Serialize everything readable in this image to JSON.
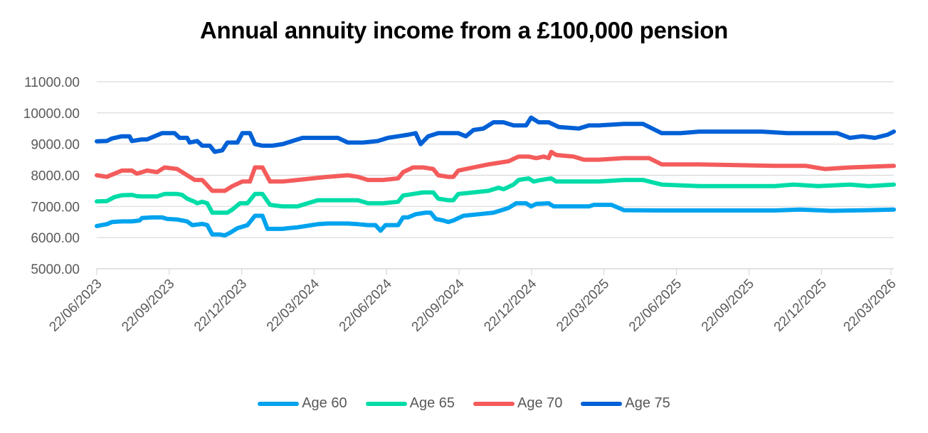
{
  "chart_data": {
    "type": "line",
    "title": "Annual annuity income from a £100,000 pension",
    "xlabel": "",
    "ylabel": "",
    "ylim": [
      5000,
      11000
    ],
    "yticks": [
      "11000.00",
      "10000.00",
      "9000.00",
      "8000.00",
      "7000.00",
      "6000.00",
      "5000.00"
    ],
    "ytick_values": [
      11000,
      10000,
      9000,
      8000,
      7000,
      6000,
      5000
    ],
    "xticks": [
      "22/06/2023",
      "22/09/2023",
      "22/12/2023",
      "22/03/2024",
      "22/06/2024",
      "22/09/2024",
      "22/12/2024",
      "22/03/2025",
      "22/06/2025",
      "22/09/2025",
      "22/12/2025",
      "22/03/2026"
    ],
    "x_range": [
      "22/06/2023",
      "22/03/2026"
    ],
    "grid": "horizontal",
    "legend_position": "bottom",
    "x_note": "x values are fraction of the time axis from 22/06/2023 (0) to 22/03/2026 (1)",
    "series": [
      {
        "name": "Age 60",
        "color": "#00A3EE",
        "points": [
          [
            0,
            6370
          ],
          [
            0.01,
            6400
          ],
          [
            0.02,
            6430
          ],
          [
            0.03,
            6500
          ],
          [
            0.05,
            6520
          ],
          [
            0.07,
            6520
          ],
          [
            0.085,
            6550
          ],
          [
            0.09,
            6630
          ],
          [
            0.11,
            6650
          ],
          [
            0.13,
            6650
          ],
          [
            0.14,
            6600
          ],
          [
            0.16,
            6580
          ],
          [
            0.17,
            6550
          ],
          [
            0.18,
            6520
          ],
          [
            0.19,
            6400
          ],
          [
            0.2,
            6420
          ],
          [
            0.21,
            6440
          ],
          [
            0.22,
            6400
          ],
          [
            0.23,
            6100
          ],
          [
            0.245,
            6100
          ],
          [
            0.255,
            6070
          ],
          [
            0.265,
            6150
          ],
          [
            0.28,
            6300
          ],
          [
            0.3,
            6400
          ],
          [
            0.315,
            6700
          ],
          [
            0.33,
            6700
          ],
          [
            0.34,
            6280
          ],
          [
            0.37,
            6280
          ],
          [
            0.38,
            6300
          ],
          [
            0.4,
            6330
          ],
          [
            0.42,
            6380
          ],
          [
            0.44,
            6430
          ],
          [
            0.46,
            6450
          ],
          [
            0.48,
            6450
          ],
          [
            0.5,
            6450
          ],
          [
            0.52,
            6430
          ],
          [
            0.54,
            6400
          ],
          [
            0.555,
            6400
          ],
          [
            0.565,
            6220
          ],
          [
            0.575,
            6400
          ],
          [
            0.6,
            6400
          ],
          [
            0.61,
            6650
          ],
          [
            0.62,
            6650
          ],
          [
            0.635,
            6750
          ],
          [
            0.655,
            6800
          ],
          [
            0.665,
            6800
          ],
          [
            0.675,
            6600
          ],
          [
            0.69,
            6550
          ],
          [
            0.7,
            6500
          ],
          [
            0.71,
            6550
          ],
          [
            0.73,
            6700
          ],
          [
            0.76,
            6750
          ],
          [
            0.79,
            6800
          ],
          [
            0.81,
            6900
          ],
          [
            0.82,
            6950
          ],
          [
            0.835,
            7100
          ],
          [
            0.855,
            7100
          ],
          [
            0.865,
            7000
          ],
          [
            0.875,
            7080
          ],
          [
            0.9,
            7100
          ],
          [
            0.91,
            7000
          ],
          [
            0.93,
            7000
          ],
          [
            0.96,
            7000
          ],
          [
            0.98,
            7000
          ],
          [
            0.99,
            7050
          ],
          [
            1.0,
            7050
          ]
        ],
        "points_tail": [
          [
            0,
            7050
          ],
          [
            0.02,
            7050
          ],
          [
            0.04,
            6880
          ],
          [
            0.1,
            6870
          ],
          [
            0.2,
            6870
          ],
          [
            0.28,
            6870
          ],
          [
            0.32,
            6900
          ],
          [
            0.37,
            6860
          ],
          [
            0.43,
            6880
          ],
          [
            0.47,
            6900
          ]
        ]
      },
      {
        "name": "Age 65",
        "color": "#00DCA8",
        "points": [
          [
            0,
            7160
          ],
          [
            0.02,
            7170
          ],
          [
            0.035,
            7300
          ],
          [
            0.05,
            7360
          ],
          [
            0.07,
            7370
          ],
          [
            0.08,
            7330
          ],
          [
            0.09,
            7320
          ],
          [
            0.12,
            7320
          ],
          [
            0.135,
            7400
          ],
          [
            0.16,
            7400
          ],
          [
            0.17,
            7370
          ],
          [
            0.18,
            7250
          ],
          [
            0.195,
            7150
          ],
          [
            0.2,
            7100
          ],
          [
            0.21,
            7150
          ],
          [
            0.22,
            7100
          ],
          [
            0.23,
            6800
          ],
          [
            0.26,
            6800
          ],
          [
            0.27,
            6900
          ],
          [
            0.285,
            7100
          ],
          [
            0.3,
            7100
          ],
          [
            0.315,
            7400
          ],
          [
            0.33,
            7400
          ],
          [
            0.345,
            7050
          ],
          [
            0.37,
            7000
          ],
          [
            0.4,
            7000
          ],
          [
            0.42,
            7100
          ],
          [
            0.44,
            7200
          ],
          [
            0.46,
            7200
          ],
          [
            0.5,
            7200
          ],
          [
            0.52,
            7200
          ],
          [
            0.54,
            7100
          ],
          [
            0.57,
            7100
          ],
          [
            0.6,
            7150
          ],
          [
            0.61,
            7350
          ],
          [
            0.63,
            7400
          ],
          [
            0.65,
            7450
          ],
          [
            0.67,
            7450
          ],
          [
            0.68,
            7250
          ],
          [
            0.7,
            7200
          ],
          [
            0.71,
            7200
          ],
          [
            0.72,
            7400
          ],
          [
            0.75,
            7450
          ],
          [
            0.78,
            7500
          ],
          [
            0.8,
            7600
          ],
          [
            0.81,
            7550
          ],
          [
            0.83,
            7700
          ],
          [
            0.84,
            7850
          ],
          [
            0.86,
            7900
          ],
          [
            0.87,
            7800
          ],
          [
            0.885,
            7850
          ],
          [
            0.905,
            7900
          ],
          [
            0.915,
            7800
          ],
          [
            0.95,
            7800
          ],
          [
            1.0,
            7800
          ]
        ],
        "points_tail": [
          [
            0,
            7800
          ],
          [
            0.04,
            7850
          ],
          [
            0.07,
            7850
          ],
          [
            0.1,
            7700
          ],
          [
            0.16,
            7650
          ],
          [
            0.28,
            7650
          ],
          [
            0.31,
            7700
          ],
          [
            0.35,
            7650
          ],
          [
            0.4,
            7700
          ],
          [
            0.43,
            7650
          ],
          [
            0.47,
            7700
          ]
        ]
      },
      {
        "name": "Age 70",
        "color": "#F45B5B",
        "points": [
          [
            0,
            8000
          ],
          [
            0.02,
            7950
          ],
          [
            0.035,
            8050
          ],
          [
            0.05,
            8150
          ],
          [
            0.07,
            8150
          ],
          [
            0.08,
            8050
          ],
          [
            0.09,
            8100
          ],
          [
            0.1,
            8150
          ],
          [
            0.12,
            8100
          ],
          [
            0.135,
            8250
          ],
          [
            0.16,
            8200
          ],
          [
            0.17,
            8100
          ],
          [
            0.18,
            8000
          ],
          [
            0.195,
            7850
          ],
          [
            0.21,
            7850
          ],
          [
            0.23,
            7500
          ],
          [
            0.255,
            7500
          ],
          [
            0.27,
            7650
          ],
          [
            0.29,
            7800
          ],
          [
            0.305,
            7800
          ],
          [
            0.315,
            8250
          ],
          [
            0.33,
            8250
          ],
          [
            0.345,
            7800
          ],
          [
            0.37,
            7800
          ],
          [
            0.4,
            7850
          ],
          [
            0.43,
            7900
          ],
          [
            0.46,
            7950
          ],
          [
            0.5,
            8000
          ],
          [
            0.52,
            7950
          ],
          [
            0.54,
            7850
          ],
          [
            0.57,
            7850
          ],
          [
            0.6,
            7900
          ],
          [
            0.61,
            8100
          ],
          [
            0.63,
            8250
          ],
          [
            0.65,
            8250
          ],
          [
            0.67,
            8200
          ],
          [
            0.68,
            8000
          ],
          [
            0.7,
            7950
          ],
          [
            0.71,
            7950
          ],
          [
            0.72,
            8150
          ],
          [
            0.75,
            8250
          ],
          [
            0.78,
            8350
          ],
          [
            0.8,
            8400
          ],
          [
            0.82,
            8450
          ],
          [
            0.84,
            8600
          ],
          [
            0.86,
            8600
          ],
          [
            0.875,
            8550
          ],
          [
            0.89,
            8600
          ],
          [
            0.9,
            8550
          ],
          [
            0.905,
            8750
          ],
          [
            0.915,
            8650
          ],
          [
            0.95,
            8600
          ],
          [
            0.97,
            8500
          ],
          [
            1.0,
            8500
          ]
        ],
        "points_tail": [
          [
            0,
            8500
          ],
          [
            0.04,
            8550
          ],
          [
            0.08,
            8550
          ],
          [
            0.1,
            8350
          ],
          [
            0.16,
            8350
          ],
          [
            0.28,
            8300
          ],
          [
            0.33,
            8300
          ],
          [
            0.36,
            8200
          ],
          [
            0.4,
            8250
          ],
          [
            0.47,
            8300
          ]
        ]
      },
      {
        "name": "Age 75",
        "color": "#0060D6",
        "points": [
          [
            0,
            9090
          ],
          [
            0.02,
            9100
          ],
          [
            0.03,
            9180
          ],
          [
            0.05,
            9250
          ],
          [
            0.065,
            9250
          ],
          [
            0.07,
            9100
          ],
          [
            0.09,
            9150
          ],
          [
            0.1,
            9150
          ],
          [
            0.115,
            9250
          ],
          [
            0.13,
            9350
          ],
          [
            0.155,
            9350
          ],
          [
            0.165,
            9200
          ],
          [
            0.18,
            9200
          ],
          [
            0.185,
            9050
          ],
          [
            0.2,
            9100
          ],
          [
            0.21,
            8950
          ],
          [
            0.225,
            8950
          ],
          [
            0.235,
            8750
          ],
          [
            0.25,
            8800
          ],
          [
            0.26,
            9050
          ],
          [
            0.28,
            9050
          ],
          [
            0.29,
            9350
          ],
          [
            0.305,
            9350
          ],
          [
            0.315,
            9000
          ],
          [
            0.33,
            8950
          ],
          [
            0.35,
            8950
          ],
          [
            0.37,
            9000
          ],
          [
            0.39,
            9100
          ],
          [
            0.41,
            9200
          ],
          [
            0.46,
            9200
          ],
          [
            0.48,
            9200
          ],
          [
            0.5,
            9050
          ],
          [
            0.53,
            9050
          ],
          [
            0.56,
            9100
          ],
          [
            0.58,
            9200
          ],
          [
            0.6,
            9250
          ],
          [
            0.62,
            9300
          ],
          [
            0.635,
            9350
          ],
          [
            0.645,
            9000
          ],
          [
            0.66,
            9250
          ],
          [
            0.68,
            9350
          ],
          [
            0.72,
            9350
          ],
          [
            0.735,
            9250
          ],
          [
            0.75,
            9450
          ],
          [
            0.77,
            9500
          ],
          [
            0.79,
            9700
          ],
          [
            0.81,
            9700
          ],
          [
            0.83,
            9600
          ],
          [
            0.855,
            9600
          ],
          [
            0.865,
            9850
          ],
          [
            0.88,
            9700
          ],
          [
            0.9,
            9700
          ],
          [
            0.92,
            9550
          ],
          [
            0.96,
            9500
          ],
          [
            0.98,
            9600
          ],
          [
            1.0,
            9600
          ]
        ],
        "points_tail": [
          [
            0,
            9600
          ],
          [
            0.04,
            9650
          ],
          [
            0.07,
            9650
          ],
          [
            0.1,
            9350
          ],
          [
            0.13,
            9350
          ],
          [
            0.16,
            9400
          ],
          [
            0.26,
            9400
          ],
          [
            0.3,
            9350
          ],
          [
            0.38,
            9350
          ],
          [
            0.4,
            9200
          ],
          [
            0.42,
            9250
          ],
          [
            0.44,
            9200
          ],
          [
            0.46,
            9300
          ],
          [
            0.47,
            9400
          ]
        ]
      }
    ]
  },
  "legend": {
    "items": [
      {
        "label": "Age 60",
        "color": "#00A3EE"
      },
      {
        "label": "Age 65",
        "color": "#00DCA8"
      },
      {
        "label": "Age 70",
        "color": "#F45B5B"
      },
      {
        "label": "Age 75",
        "color": "#0060D6"
      }
    ]
  }
}
